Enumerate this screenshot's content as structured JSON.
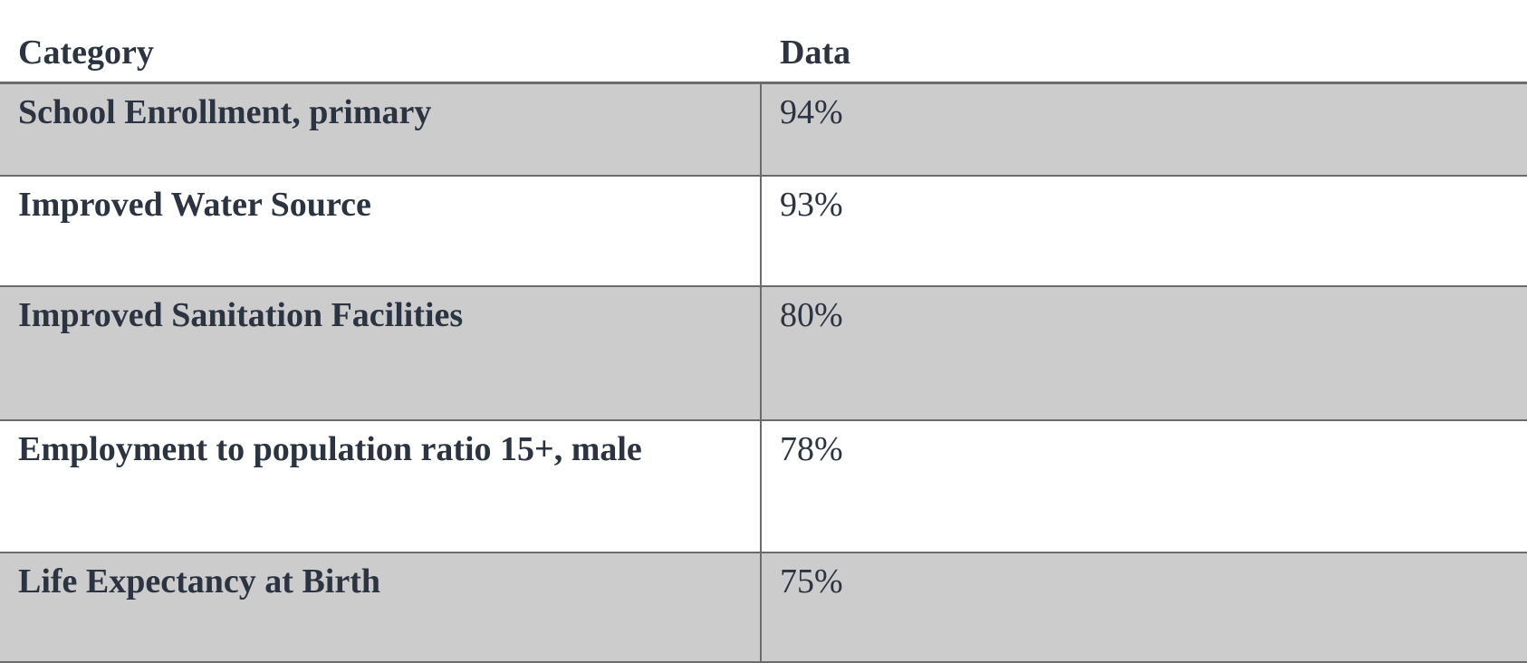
{
  "table": {
    "headers": {
      "category": "Category",
      "data": "Data"
    },
    "rows": [
      {
        "category": "School Enrollment, primary",
        "data": "94%"
      },
      {
        "category": "Improved Water Source",
        "data": "93%"
      },
      {
        "category": "Improved Sanitation Facilities",
        "data": "80%"
      },
      {
        "category": "Employment to population ratio 15+, male",
        "data": "78%"
      },
      {
        "category": "Life Expectancy at Birth",
        "data": "75%"
      }
    ],
    "colors": {
      "shaded_row": "#cccccc",
      "plain_row": "#ffffff",
      "text": "#2b3440",
      "rule": "#6b6b6b"
    }
  }
}
